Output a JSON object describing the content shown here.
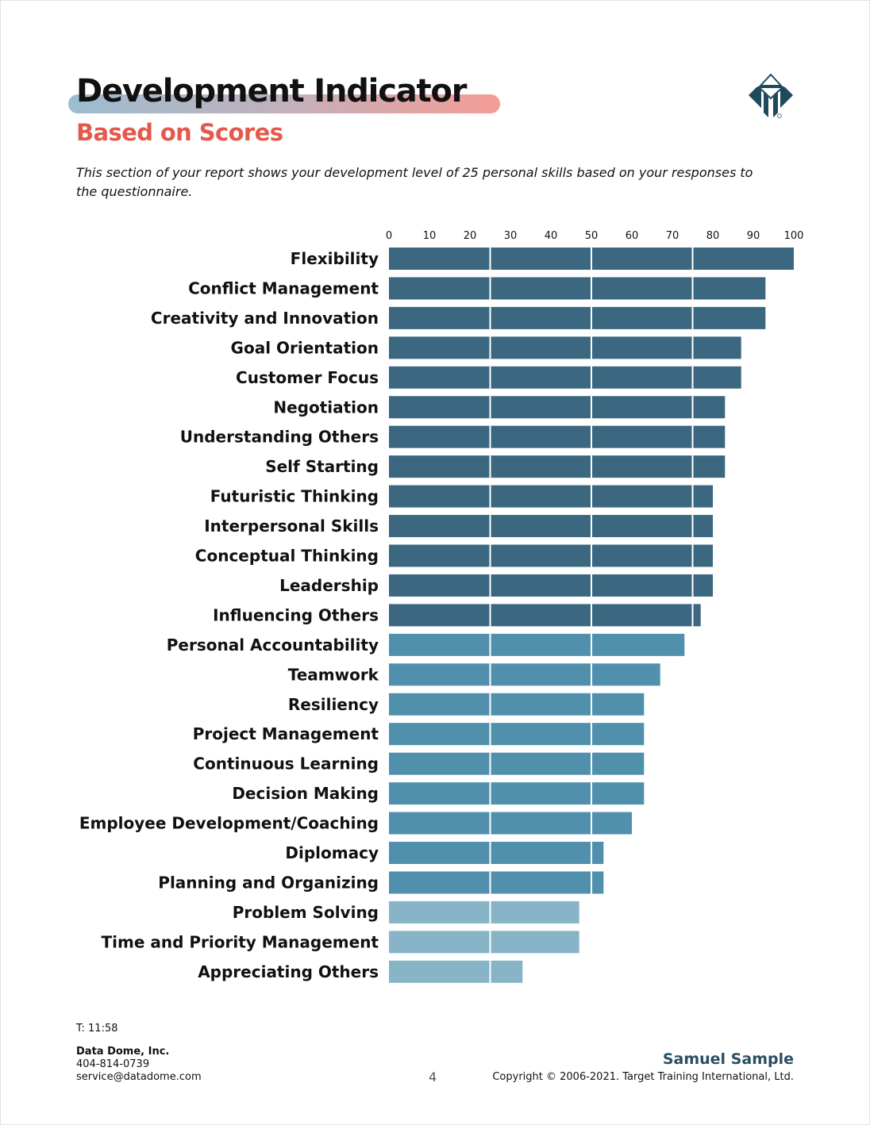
{
  "header": {
    "title": "Development Indicator",
    "subtitle": "Based on Scores",
    "intro": "This section of your report shows your development level of 25 personal skills based on your responses to the questionnaire.",
    "logo_icon": "ttisi-pyramid-logo-icon"
  },
  "colors": {
    "title_gradient": [
      "#9bbdd0",
      "#f59c95"
    ],
    "subtitle": "#e4594b",
    "bar_high": "#3b6880",
    "bar_mid": "#5190ad",
    "bar_low": "#87b4c7",
    "name": "#2a4e63"
  },
  "chart_data": {
    "type": "bar",
    "orientation": "horizontal",
    "xlim": [
      0,
      100
    ],
    "xticks": [
      0,
      10,
      20,
      30,
      40,
      50,
      60,
      70,
      80,
      90,
      100
    ],
    "grid_dividers": [
      25,
      50,
      75
    ],
    "legend": "none",
    "categories": [
      "Flexibility",
      "Conflict Management",
      "Creativity and Innovation",
      "Goal Orientation",
      "Customer Focus",
      "Negotiation",
      "Understanding Others",
      "Self Starting",
      "Futuristic Thinking",
      "Interpersonal Skills",
      "Conceptual Thinking",
      "Leadership",
      "Influencing Others",
      "Personal Accountability",
      "Teamwork",
      "Resiliency",
      "Project Management",
      "Continuous Learning",
      "Decision Making",
      "Employee Development/Coaching",
      "Diplomacy",
      "Planning and Organizing",
      "Problem Solving",
      "Time and Priority Management",
      "Appreciating Others"
    ],
    "values": [
      100,
      93,
      93,
      87,
      87,
      83,
      83,
      83,
      80,
      80,
      80,
      80,
      77,
      73,
      67,
      63,
      63,
      63,
      63,
      60,
      53,
      53,
      47,
      47,
      33
    ],
    "levels": [
      "high",
      "high",
      "high",
      "high",
      "high",
      "high",
      "high",
      "high",
      "high",
      "high",
      "high",
      "high",
      "high",
      "mid",
      "mid",
      "mid",
      "mid",
      "mid",
      "mid",
      "mid",
      "mid",
      "mid",
      "low",
      "low",
      "low"
    ]
  },
  "footer": {
    "time": "T: 11:58",
    "company": "Data Dome, Inc.",
    "phone": "404-814-0739",
    "email": "service@datadome.com",
    "page_number": "4",
    "person_name": "Samuel Sample",
    "copyright": "Copyright © 2006-2021. Target Training International, Ltd."
  }
}
